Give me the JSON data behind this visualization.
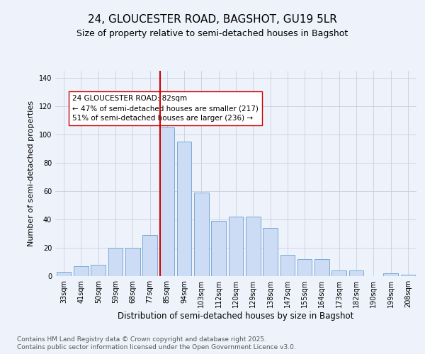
{
  "title": "24, GLOUCESTER ROAD, BAGSHOT, GU19 5LR",
  "subtitle": "Size of property relative to semi-detached houses in Bagshot",
  "xlabel": "Distribution of semi-detached houses by size in Bagshot",
  "ylabel": "Number of semi-detached properties",
  "categories": [
    "33sqm",
    "41sqm",
    "50sqm",
    "59sqm",
    "68sqm",
    "77sqm",
    "85sqm",
    "94sqm",
    "103sqm",
    "112sqm",
    "120sqm",
    "129sqm",
    "138sqm",
    "147sqm",
    "155sqm",
    "164sqm",
    "173sqm",
    "182sqm",
    "190sqm",
    "199sqm",
    "208sqm"
  ],
  "values": [
    3,
    7,
    8,
    20,
    20,
    29,
    105,
    95,
    59,
    39,
    42,
    42,
    34,
    15,
    12,
    12,
    4,
    4,
    0,
    2,
    1
  ],
  "bar_color": "#ccdcf5",
  "bar_edge_color": "#7aaad4",
  "vline_x_index": 6,
  "vline_color": "#cc0000",
  "annotation_text": "24 GLOUCESTER ROAD: 82sqm\n← 47% of semi-detached houses are smaller (217)\n51% of semi-detached houses are larger (236) →",
  "annotation_box_color": "#ffffff",
  "annotation_box_edge": "#cc0000",
  "ylim": [
    0,
    145
  ],
  "yticks": [
    0,
    20,
    40,
    60,
    80,
    100,
    120,
    140
  ],
  "footer_text": "Contains HM Land Registry data © Crown copyright and database right 2025.\nContains public sector information licensed under the Open Government Licence v3.0.",
  "bg_color": "#eef2fb",
  "title_fontsize": 11,
  "subtitle_fontsize": 9,
  "axis_label_fontsize": 8,
  "tick_fontsize": 7,
  "annotation_fontsize": 7.5,
  "footer_fontsize": 6.5
}
